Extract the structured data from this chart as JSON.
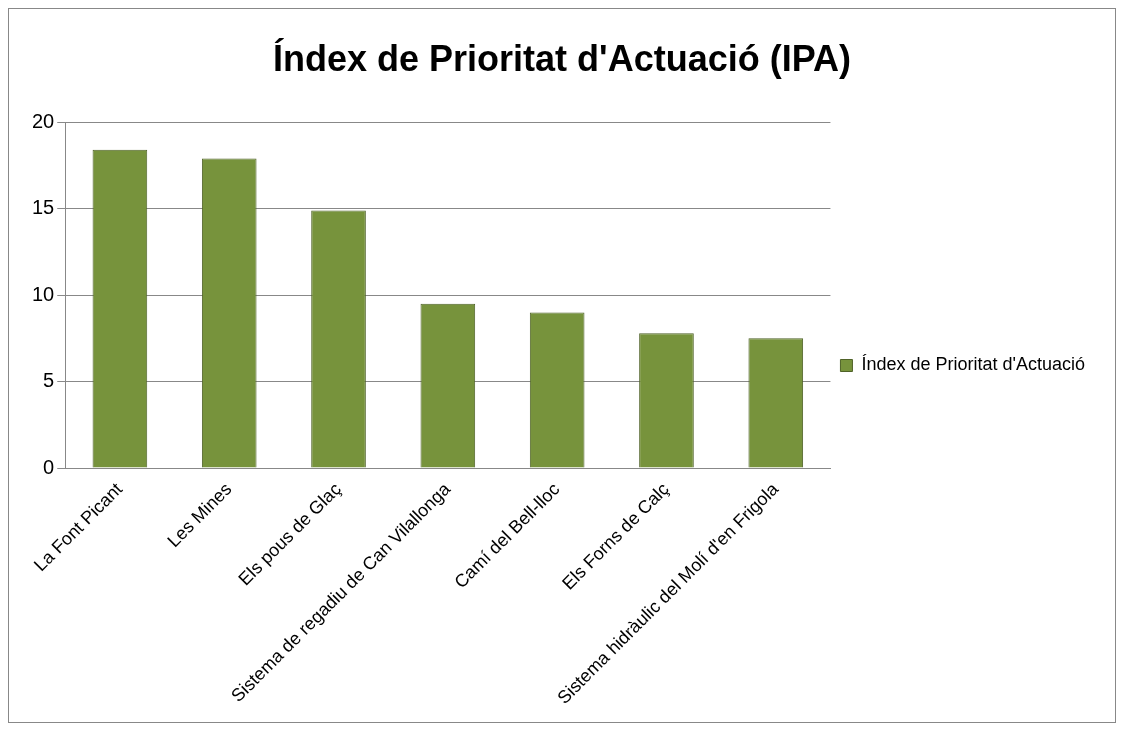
{
  "chart_data": {
    "type": "bar",
    "title": "Índex de Prioritat d'Actuació (IPA)",
    "categories": [
      "La Font Picant",
      "Les Mines",
      "Els pous de Glaç",
      "Sistema de regadiu de Can Vilallonga",
      "Camí del Bell-lloc",
      "Els Forns de Calç",
      "Sistema hidràulic del Molí d'en Frigola"
    ],
    "series": [
      {
        "name": "Índex de Prioritat d'Actuació",
        "color": "#77933c",
        "values": [
          18.4,
          17.9,
          14.9,
          9.5,
          9.0,
          7.8,
          7.5
        ]
      }
    ],
    "ylim": [
      0,
      20
    ],
    "yticks": [
      0,
      5,
      10,
      15,
      20
    ],
    "grid": "y",
    "legend": "right"
  }
}
